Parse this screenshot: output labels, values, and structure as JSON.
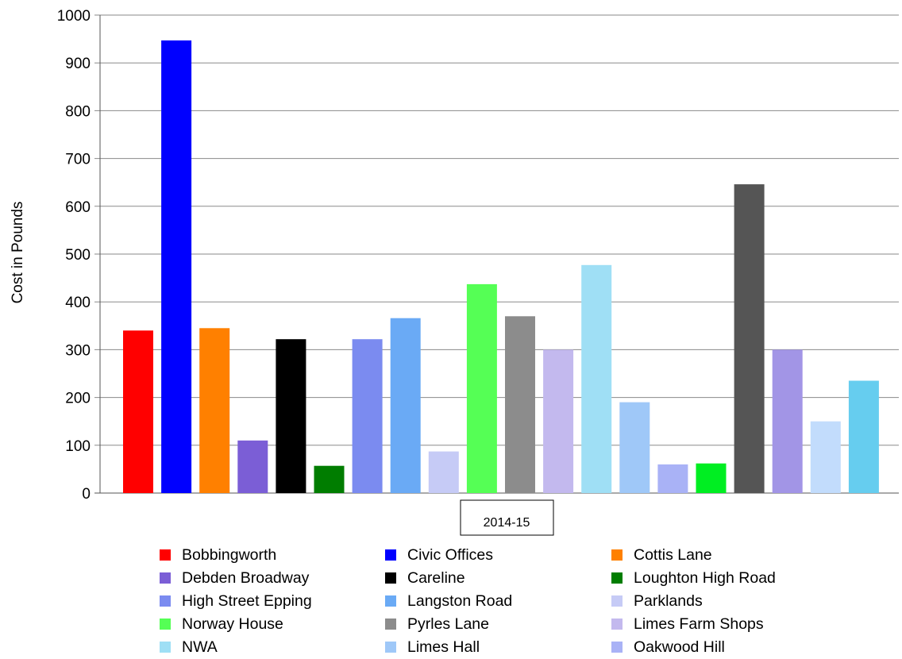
{
  "chart_data": {
    "type": "bar",
    "title": "",
    "xlabel": "",
    "ylabel": "Cost in Pounds",
    "ylim": [
      0,
      1000
    ],
    "yticks": [
      0,
      100,
      200,
      300,
      400,
      500,
      600,
      700,
      800,
      900,
      1000
    ],
    "grid": true,
    "legend_position": "bottom",
    "categories": [
      "2014-15"
    ],
    "series": [
      {
        "name": "Bobbingworth",
        "values": [
          340
        ],
        "color": "#ff0000"
      },
      {
        "name": "Civic Offices",
        "values": [
          947
        ],
        "color": "#0000ff"
      },
      {
        "name": "Cottis Lane",
        "values": [
          345
        ],
        "color": "#ff8000"
      },
      {
        "name": "Debden Broadway",
        "values": [
          110
        ],
        "color": "#7b5ed6"
      },
      {
        "name": "Careline",
        "values": [
          322
        ],
        "color": "#000000"
      },
      {
        "name": "Loughton High Road",
        "values": [
          57
        ],
        "color": "#007d00"
      },
      {
        "name": "High Street Epping",
        "values": [
          322
        ],
        "color": "#7b8bf0"
      },
      {
        "name": "Langston Road",
        "values": [
          366
        ],
        "color": "#6aaaf5"
      },
      {
        "name": "Parklands",
        "values": [
          87
        ],
        "color": "#c6cbf6"
      },
      {
        "name": "Norway House",
        "values": [
          437
        ],
        "color": "#55ff55"
      },
      {
        "name": "Pyrles Lane",
        "values": [
          370
        ],
        "color": "#8c8c8c"
      },
      {
        "name": "Limes Farm Shops",
        "values": [
          300
        ],
        "color": "#c3b9ee"
      },
      {
        "name": "NWA",
        "values": [
          477
        ],
        "color": "#9fdff5"
      },
      {
        "name": "Limes Hall",
        "values": [
          190
        ],
        "color": "#9fc8f8"
      },
      {
        "name": "Oakwood Hill",
        "values": [
          60
        ],
        "color": "#a9b2f6"
      },
      {
        "name": "",
        "values": [
          62
        ],
        "color": "#00ee22"
      },
      {
        "name": "",
        "values": [
          646
        ],
        "color": "#555555"
      },
      {
        "name": "",
        "values": [
          300
        ],
        "color": "#a295e6"
      },
      {
        "name": "",
        "values": [
          150
        ],
        "color": "#c2dcfc"
      },
      {
        "name": "",
        "values": [
          235
        ],
        "color": "#66cdef"
      }
    ]
  }
}
